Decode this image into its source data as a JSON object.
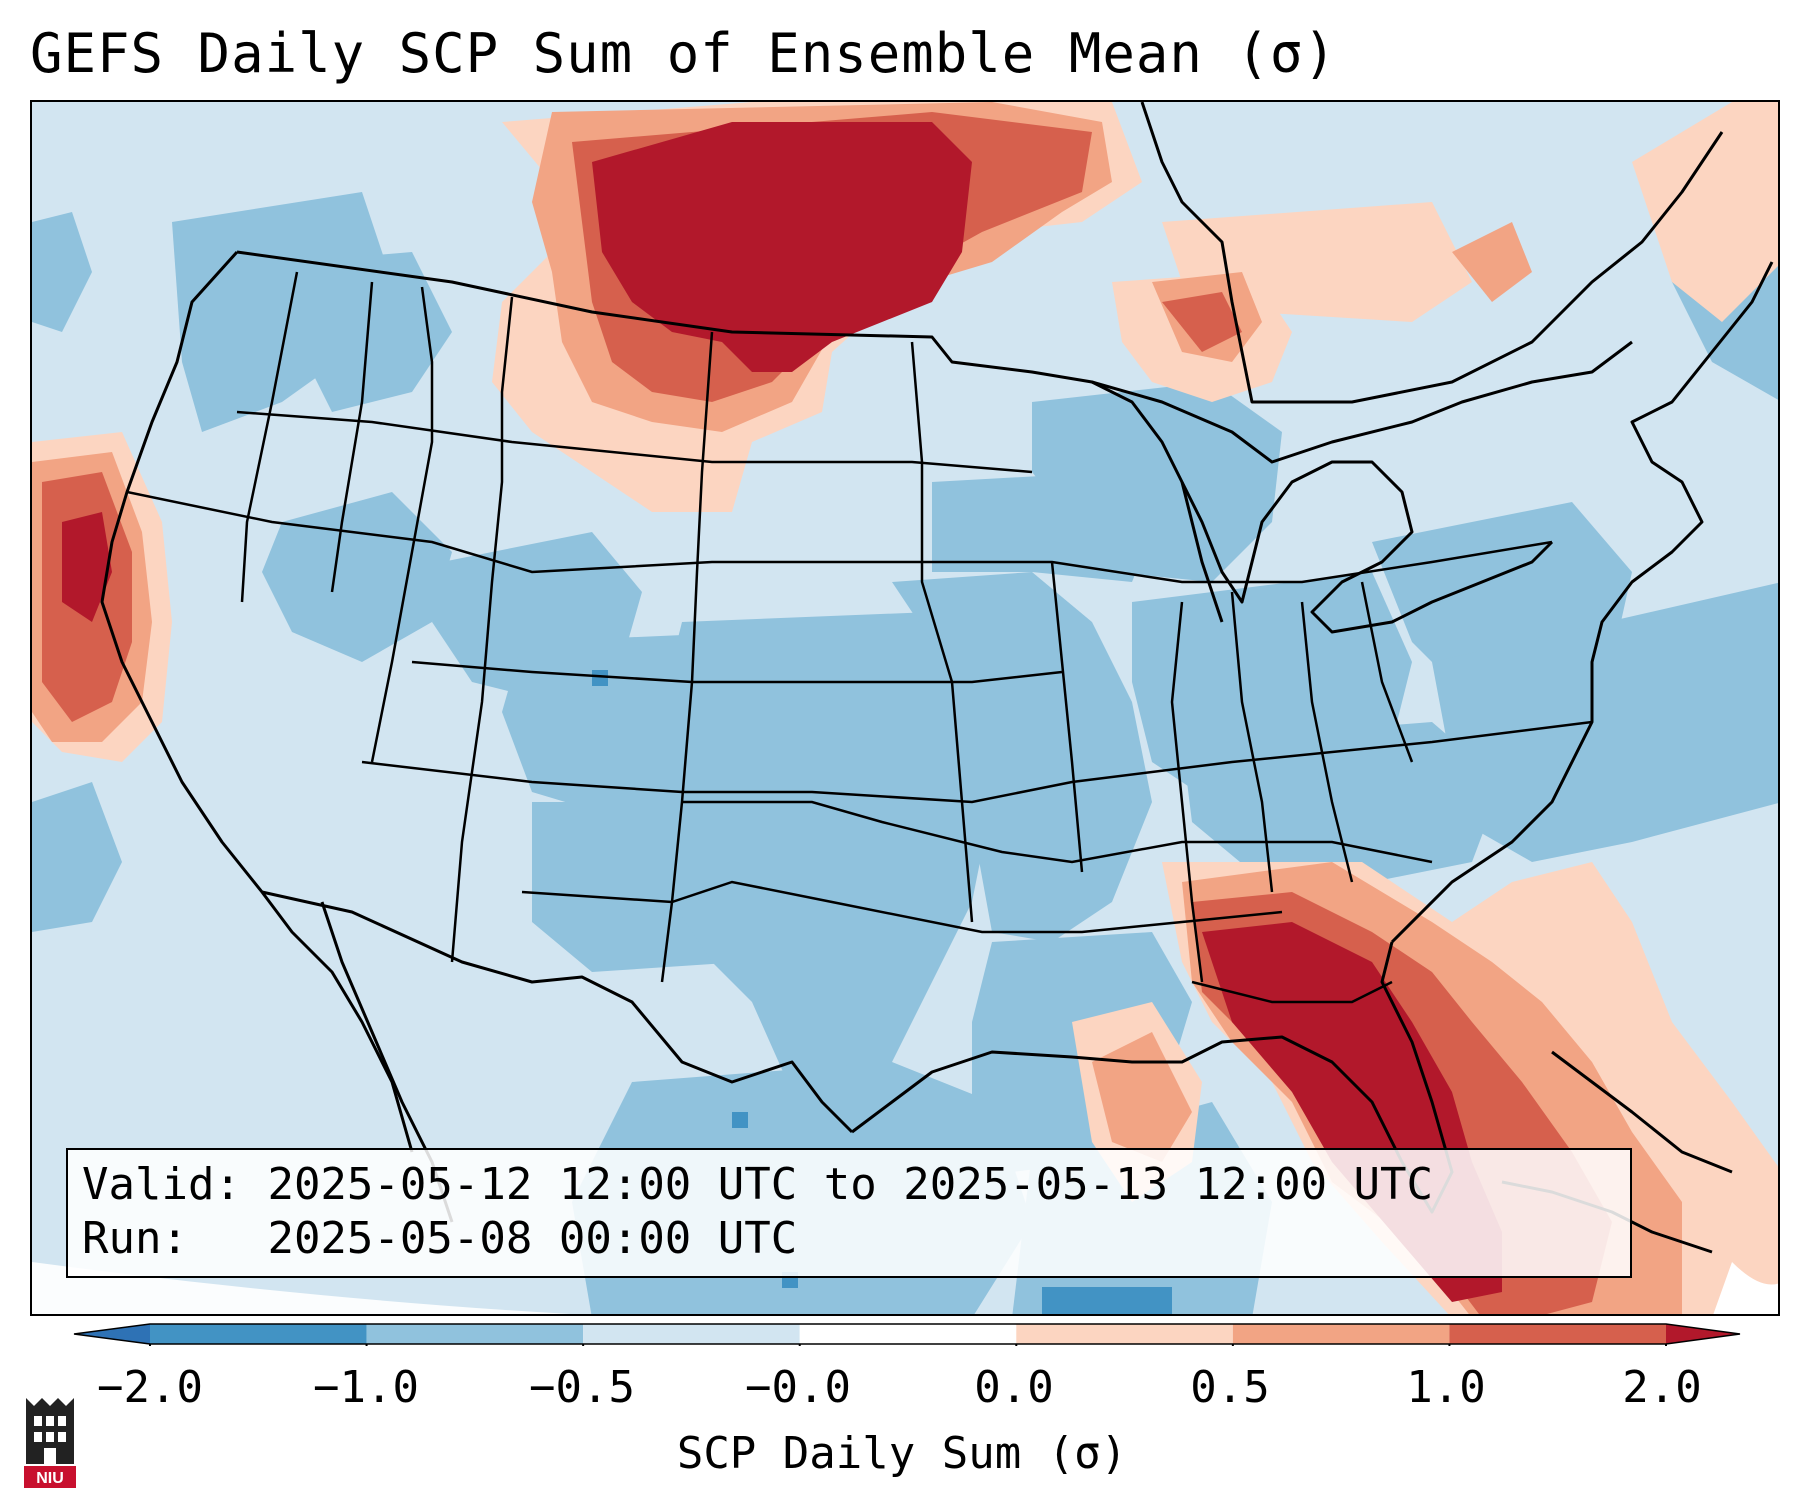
{
  "title": "GEFS Daily SCP Sum of Ensemble Mean (σ)",
  "info": {
    "valid_label": "Valid:",
    "valid_value": "2025-05-12 12:00 UTC to 2025-05-13 12:00 UTC",
    "run_label": "Run:",
    "run_value": "2025-05-08 00:00 UTC"
  },
  "colorbar": {
    "label": "SCP Daily Sum (σ)",
    "ticks": [
      "−2.0",
      "−1.0",
      "−0.5",
      "−0.0",
      "0.0",
      "0.5",
      "1.0",
      "2.0"
    ],
    "bins": [
      {
        "range": "< -2.0",
        "color": "#2e72b5"
      },
      {
        "range": "-2.0 to -1.0",
        "color": "#4293c4"
      },
      {
        "range": "-1.0 to -0.5",
        "color": "#90c2dd"
      },
      {
        "range": "-0.5 to -0.0",
        "color": "#d2e5f1"
      },
      {
        "range": "-0.0 to 0.0",
        "color": "#ffffff"
      },
      {
        "range": "0.0 to 0.5",
        "color": "#fcd5c1"
      },
      {
        "range": "0.5 to 1.0",
        "color": "#f2a484"
      },
      {
        "range": "1.0 to 2.0",
        "color": "#d6604d"
      },
      {
        "range": "> 2.0",
        "color": "#b2182b"
      }
    ]
  },
  "logo": {
    "text": "NIU",
    "icon": "niu-logo-icon"
  }
}
